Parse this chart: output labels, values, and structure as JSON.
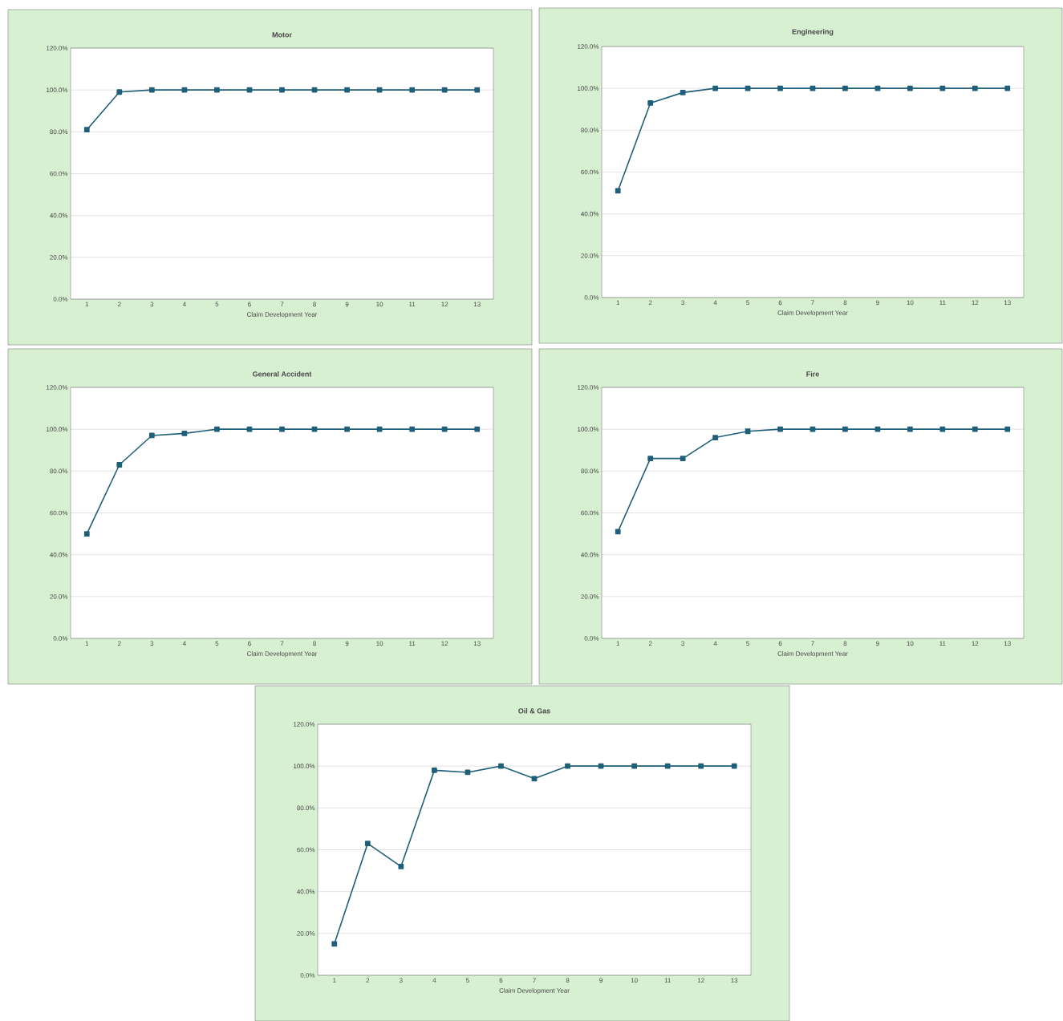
{
  "chart_data": [
    {
      "type": "line",
      "title": "Motor",
      "xlabel": "Claim Development Year",
      "categories": [
        "1",
        "2",
        "3",
        "4",
        "5",
        "6",
        "7",
        "8",
        "9",
        "10",
        "11",
        "12",
        "13"
      ],
      "series": [
        {
          "color": "#1f5f7a",
          "values": [
            81,
            99,
            100,
            100,
            100,
            100,
            100,
            100,
            100,
            100,
            100,
            100,
            100
          ]
        }
      ],
      "ylim": [
        0,
        120
      ],
      "yticks": [
        {
          "value": 0,
          "label": "0.0%"
        },
        {
          "value": 20,
          "label": "20.0%"
        },
        {
          "value": 40,
          "label": "40.0%"
        },
        {
          "value": 60,
          "label": "60.0%"
        },
        {
          "value": 80,
          "label": "80.0%"
        },
        {
          "value": 100,
          "label": "100.0%"
        },
        {
          "value": 120,
          "label": "120.0%"
        }
      ],
      "grid": "y",
      "marker": "square",
      "line_style": "solid"
    },
    {
      "type": "line",
      "title": "Engineering",
      "xlabel": "Claim Development Year",
      "categories": [
        "1",
        "2",
        "3",
        "4",
        "5",
        "6",
        "7",
        "8",
        "9",
        "10",
        "11",
        "12",
        "13"
      ],
      "series": [
        {
          "color": "#1f5f7a",
          "values": [
            51,
            93,
            98,
            100,
            100,
            100,
            100,
            100,
            100,
            100,
            100,
            100,
            100
          ]
        }
      ],
      "ylim": [
        0,
        120
      ],
      "yticks": [
        {
          "value": 0,
          "label": "0.0%"
        },
        {
          "value": 20,
          "label": "20.0%"
        },
        {
          "value": 40,
          "label": "40.0%"
        },
        {
          "value": 60,
          "label": "60.0%"
        },
        {
          "value": 80,
          "label": "80.0%"
        },
        {
          "value": 100,
          "label": "100.0%"
        },
        {
          "value": 120,
          "label": "120.0%"
        }
      ],
      "grid": "y",
      "marker": "square",
      "line_style": "solid"
    },
    {
      "type": "line",
      "title": "General Accident",
      "xlabel": "Claim Development Year",
      "categories": [
        "1",
        "2",
        "3",
        "4",
        "5",
        "6",
        "7",
        "8",
        "9",
        "10",
        "11",
        "12",
        "13"
      ],
      "series": [
        {
          "color": "#1f5f7a",
          "values": [
            50,
            83,
            97,
            98,
            100,
            100,
            100,
            100,
            100,
            100,
            100,
            100,
            100
          ]
        }
      ],
      "ylim": [
        0,
        120
      ],
      "yticks": [
        {
          "value": 0,
          "label": "0.0%"
        },
        {
          "value": 20,
          "label": "20.0%"
        },
        {
          "value": 40,
          "label": "40.0%"
        },
        {
          "value": 60,
          "label": "60.0%"
        },
        {
          "value": 80,
          "label": "80.0%"
        },
        {
          "value": 100,
          "label": "100.0%"
        },
        {
          "value": 120,
          "label": "120.0%"
        }
      ],
      "grid": "y",
      "marker": "square",
      "line_style": "solid"
    },
    {
      "type": "line",
      "title": "Fire",
      "xlabel": "Claim Development Year",
      "categories": [
        "1",
        "2",
        "3",
        "4",
        "5",
        "6",
        "7",
        "8",
        "9",
        "10",
        "11",
        "12",
        "13"
      ],
      "series": [
        {
          "color": "#1f5f7a",
          "values": [
            51,
            86,
            86,
            96,
            99,
            100,
            100,
            100,
            100,
            100,
            100,
            100,
            100
          ]
        }
      ],
      "ylim": [
        0,
        120
      ],
      "yticks": [
        {
          "value": 0,
          "label": "0.0%"
        },
        {
          "value": 20,
          "label": "20.0%"
        },
        {
          "value": 40,
          "label": "40.0%"
        },
        {
          "value": 60,
          "label": "60.0%"
        },
        {
          "value": 80,
          "label": "80.0%"
        },
        {
          "value": 100,
          "label": "100.0%"
        },
        {
          "value": 120,
          "label": "120.0%"
        }
      ],
      "grid": "y",
      "marker": "square",
      "line_style": "solid"
    },
    {
      "type": "line",
      "title": "Oil & Gas",
      "xlabel": "Claim Development Year",
      "categories": [
        "1",
        "2",
        "3",
        "4",
        "5",
        "6",
        "7",
        "8",
        "9",
        "10",
        "11",
        "12",
        "13"
      ],
      "series": [
        {
          "color": "#1f5f7a",
          "values": [
            15,
            63,
            52,
            98,
            97,
            100,
            94,
            100,
            100,
            100,
            100,
            100,
            100
          ]
        }
      ],
      "ylim": [
        0,
        120
      ],
      "yticks": [
        {
          "value": 0,
          "label": "0.0%"
        },
        {
          "value": 20,
          "label": "20.0%"
        },
        {
          "value": 40,
          "label": "40.0%"
        },
        {
          "value": 60,
          "label": "60.0%"
        },
        {
          "value": 80,
          "label": "80.0%"
        },
        {
          "value": 100,
          "label": "100.0%"
        },
        {
          "value": 120,
          "label": "120.0%"
        }
      ],
      "grid": "y",
      "marker": "square",
      "line_style": "solid"
    }
  ]
}
